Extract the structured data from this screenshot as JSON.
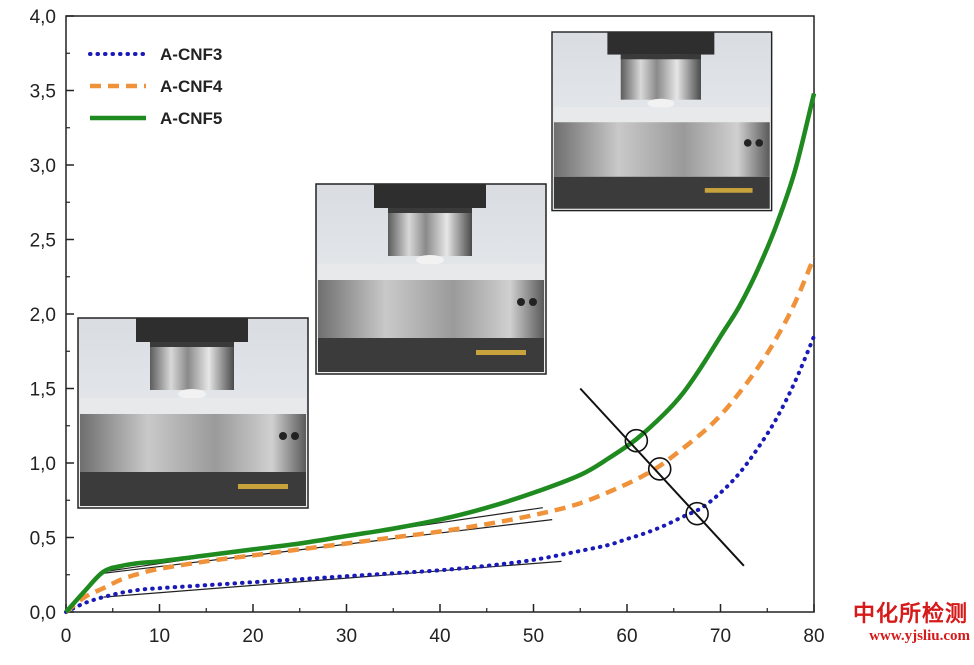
{
  "chart_data": {
    "type": "line",
    "title": "",
    "xlabel": "",
    "ylabel": "",
    "xlim": [
      0,
      80
    ],
    "ylim": [
      0,
      4
    ],
    "x_ticks": [
      "0",
      "10",
      "20",
      "30",
      "40",
      "50",
      "60",
      "70",
      "80"
    ],
    "y_ticks": [
      "0,0",
      "0,5",
      "1,0",
      "1,5",
      "2,0",
      "2,5",
      "3,0",
      "3,5",
      "4,0"
    ],
    "legend_position": "top-left",
    "grid": false,
    "series": [
      {
        "name": "A-CNF3",
        "style": "dotted",
        "color": "#1a1ab8",
        "x": [
          0,
          2,
          4,
          6,
          8,
          10,
          15,
          20,
          25,
          30,
          35,
          40,
          45,
          50,
          55,
          58,
          60,
          62,
          64,
          66,
          68,
          70,
          72,
          74,
          76,
          78,
          80
        ],
        "y": [
          0,
          0.06,
          0.1,
          0.13,
          0.15,
          0.16,
          0.18,
          0.2,
          0.22,
          0.24,
          0.26,
          0.28,
          0.31,
          0.35,
          0.41,
          0.45,
          0.49,
          0.53,
          0.58,
          0.64,
          0.7,
          0.8,
          0.93,
          1.1,
          1.3,
          1.55,
          1.85
        ]
      },
      {
        "name": "A-CNF4",
        "style": "dashed",
        "color": "#f0923a",
        "x": [
          0,
          2,
          4,
          6,
          8,
          10,
          15,
          20,
          25,
          30,
          35,
          40,
          45,
          50,
          55,
          60,
          63,
          65,
          68,
          70,
          72,
          74,
          76,
          78,
          80
        ],
        "y": [
          0,
          0.1,
          0.16,
          0.22,
          0.26,
          0.29,
          0.34,
          0.38,
          0.42,
          0.46,
          0.5,
          0.54,
          0.59,
          0.65,
          0.73,
          0.86,
          0.96,
          1.05,
          1.2,
          1.32,
          1.47,
          1.64,
          1.84,
          2.08,
          2.38
        ]
      },
      {
        "name": "A-CNF5",
        "style": "solid",
        "color": "#1f8a1f",
        "x": [
          0,
          2,
          4,
          6,
          8,
          10,
          15,
          20,
          25,
          30,
          35,
          40,
          45,
          50,
          55,
          58,
          61,
          64,
          66,
          68,
          70,
          72,
          74,
          76,
          78,
          80
        ],
        "y": [
          0,
          0.14,
          0.27,
          0.31,
          0.33,
          0.34,
          0.38,
          0.42,
          0.46,
          0.51,
          0.56,
          0.62,
          0.7,
          0.8,
          0.92,
          1.03,
          1.16,
          1.33,
          1.47,
          1.65,
          1.85,
          2.05,
          2.3,
          2.6,
          2.97,
          3.48
        ]
      }
    ],
    "annotations": {
      "fit_lines": [
        {
          "x": [
            4,
            53
          ],
          "y": [
            0.1,
            0.34
          ]
        },
        {
          "x": [
            4,
            52
          ],
          "y": [
            0.26,
            0.62
          ]
        },
        {
          "x": [
            4,
            51
          ],
          "y": [
            0.27,
            0.7
          ]
        }
      ],
      "crossing_line": {
        "x": [
          55,
          72.5
        ],
        "y": [
          1.5,
          0.31
        ]
      },
      "circle_markers": [
        {
          "x": 61,
          "y": 1.15
        },
        {
          "x": 63.5,
          "y": 0.96
        },
        {
          "x": 67.5,
          "y": 0.66
        }
      ]
    },
    "inset_photos": [
      {
        "name": "photo-test-early"
      },
      {
        "name": "photo-test-mid"
      },
      {
        "name": "photo-test-late"
      }
    ]
  },
  "watermark": {
    "title": "中化所检测",
    "url": "www.yjsliu.com"
  }
}
